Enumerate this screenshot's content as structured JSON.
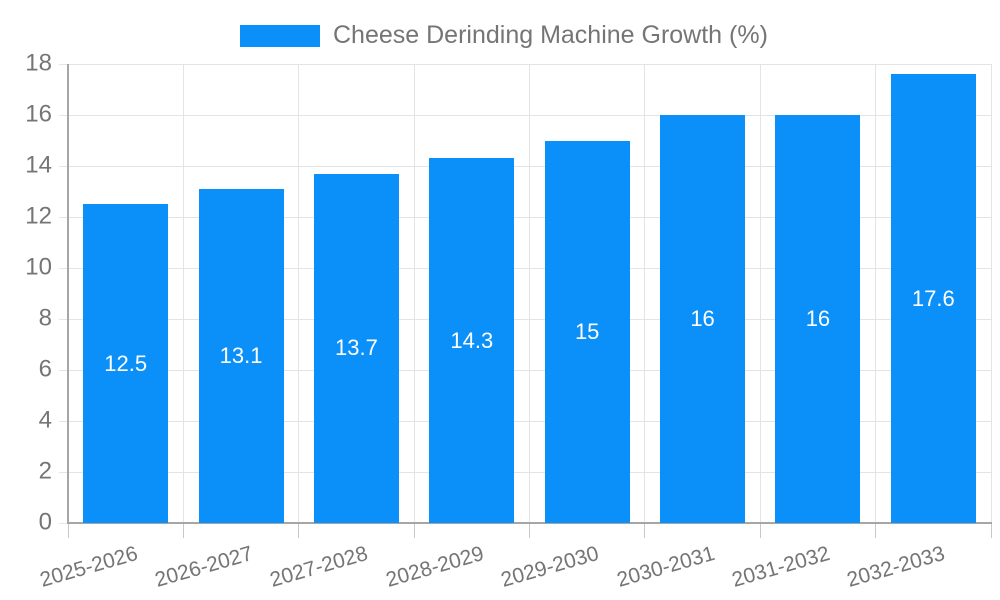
{
  "legend": {
    "label": "Cheese Derinding Machine Growth (%)"
  },
  "chart_data": {
    "type": "bar",
    "title": "Cheese Derinding Machine Growth (%)",
    "categories": [
      "2025-2026",
      "2026-2027",
      "2027-2028",
      "2028-2029",
      "2029-2030",
      "2030-2031",
      "2031-2032",
      "2032-2033"
    ],
    "values": [
      12.5,
      13.1,
      13.7,
      14.3,
      15,
      16,
      16,
      17.6
    ],
    "xlabel": "",
    "ylabel": "",
    "ylim": [
      0,
      18
    ],
    "ytick_step": 2,
    "ytick_labels": [
      "0",
      "2",
      "4",
      "6",
      "8",
      "10",
      "12",
      "14",
      "16",
      "18"
    ],
    "grid": true,
    "legend_position": "top-center",
    "value_labels": "inside-middle",
    "colors": {
      "bar": "#0a90f8",
      "gridline": "#e4e4e4",
      "axis": "#a6a6a6",
      "tick": "#c9c9c9",
      "label_text": "#757575",
      "value_label_text": "#ffffff",
      "background": "#ffffff"
    }
  }
}
